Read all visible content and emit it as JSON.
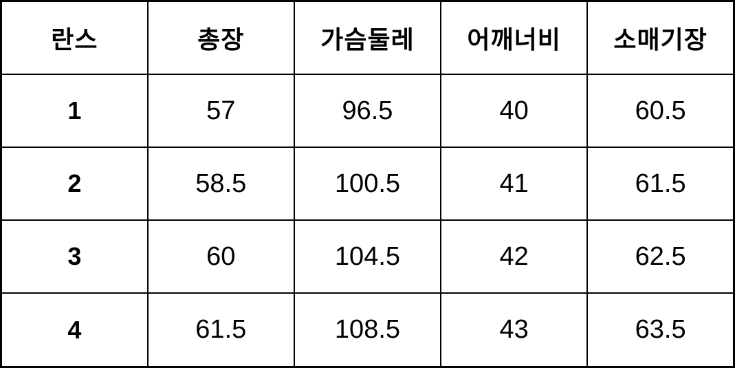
{
  "table": {
    "columns": [
      "란스",
      "총장",
      "가슴둘레",
      "어깨너비",
      "소매기장"
    ],
    "rows": [
      [
        "1",
        "57",
        "96.5",
        "40",
        "60.5"
      ],
      [
        "2",
        "58.5",
        "100.5",
        "41",
        "61.5"
      ],
      [
        "3",
        "60",
        "104.5",
        "42",
        "62.5"
      ],
      [
        "4",
        "61.5",
        "108.5",
        "43",
        "63.5"
      ]
    ]
  },
  "colors": {
    "border": "#000000",
    "text": "#000000",
    "background": "#ffffff"
  }
}
